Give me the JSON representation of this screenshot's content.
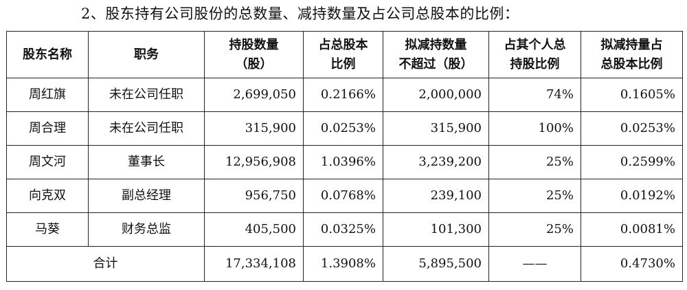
{
  "heading": "2、股东持有公司股份的总数量、减持数量及占公司总股本的比例：",
  "table": {
    "headers": [
      [
        "股东名称"
      ],
      [
        "职务"
      ],
      [
        "持股数量",
        "（股）"
      ],
      [
        "占总股本",
        "比例"
      ],
      [
        "拟减持数量",
        "不超过（股）"
      ],
      [
        "占其个人总",
        "持股比例"
      ],
      [
        "拟减持量占",
        "总股本比例"
      ]
    ],
    "rows": [
      {
        "name": "周红旗",
        "position": "未在公司任职",
        "shares": "2,699,050",
        "pct_total": "0.2166%",
        "reduce": "2,000,000",
        "pct_personal": "74%",
        "reduce_pct_total": "0.1605%"
      },
      {
        "name": "周合理",
        "position": "未在公司任职",
        "shares": "315,900",
        "pct_total": "0.0253%",
        "reduce": "315,900",
        "pct_personal": "100%",
        "reduce_pct_total": "0.0253%"
      },
      {
        "name": "周文河",
        "position": "董事长",
        "shares": "12,956,908",
        "pct_total": "1.0396%",
        "reduce": "3,239,200",
        "pct_personal": "25%",
        "reduce_pct_total": "0.2599%"
      },
      {
        "name": "向克双",
        "position": "副总经理",
        "shares": "956,750",
        "pct_total": "0.0768%",
        "reduce": "239,100",
        "pct_personal": "25%",
        "reduce_pct_total": "0.0192%"
      },
      {
        "name": "马葵",
        "position": "财务总监",
        "shares": "405,500",
        "pct_total": "0.0325%",
        "reduce": "101,300",
        "pct_personal": "25%",
        "reduce_pct_total": "0.0081%"
      }
    ],
    "total": {
      "label": "合计",
      "shares": "17,334,108",
      "pct_total": "1.3908%",
      "reduce": "5,895,500",
      "pct_personal": "——",
      "reduce_pct_total": "0.4730%"
    }
  }
}
